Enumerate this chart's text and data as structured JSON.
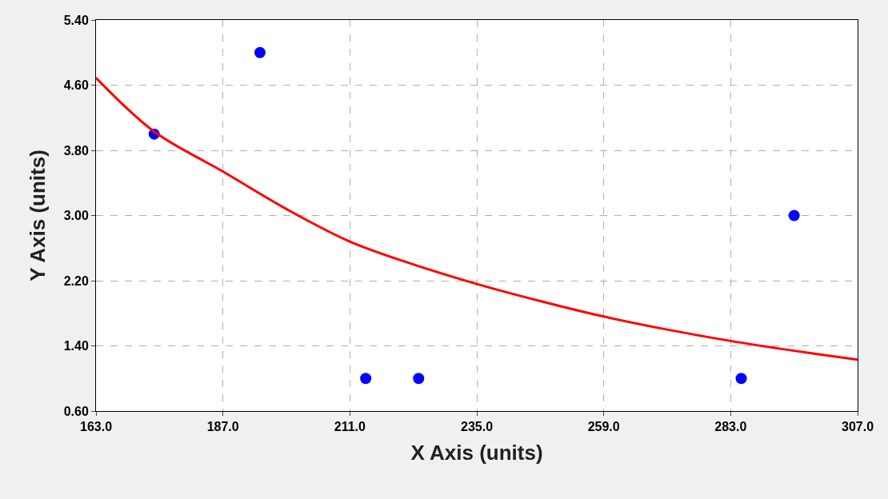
{
  "chart_data": {
    "type": "scatter",
    "xlabel": "X Axis (units)",
    "ylabel": "Y Axis (units)",
    "xlim": [
      163,
      307
    ],
    "ylim": [
      0.6,
      5.4
    ],
    "xticks": [
      {
        "value": 163,
        "label": "163.0"
      },
      {
        "value": 187,
        "label": "187.0"
      },
      {
        "value": 211,
        "label": "211.0"
      },
      {
        "value": 235,
        "label": "235.0"
      },
      {
        "value": 259,
        "label": "259.0"
      },
      {
        "value": 283,
        "label": "283.0"
      },
      {
        "value": 307,
        "label": "307.0"
      }
    ],
    "yticks": [
      {
        "value": 0.6,
        "label": "0.60"
      },
      {
        "value": 1.4,
        "label": "1.40"
      },
      {
        "value": 2.2,
        "label": "2.20"
      },
      {
        "value": 3.0,
        "label": "3.00"
      },
      {
        "value": 3.8,
        "label": "3.80"
      },
      {
        "value": 4.6,
        "label": "4.60"
      },
      {
        "value": 5.4,
        "label": "5.40"
      }
    ],
    "grid": true,
    "series": [
      {
        "color": "#0000ff",
        "marker": "circle",
        "x": [
          174,
          194,
          214,
          224,
          285,
          295
        ],
        "values": [
          4.0,
          5.0,
          1.0,
          1.0,
          1.0,
          3.0
        ]
      },
      {
        "type": "line",
        "color": "#ff0000",
        "marker": "none",
        "line_style": "solid",
        "x": [
          163,
          174,
          187,
          199,
          211,
          223,
          235,
          247,
          259,
          271,
          283,
          295,
          307
        ],
        "values": [
          4.69,
          4.03,
          3.54,
          3.08,
          2.68,
          2.4,
          2.16,
          1.95,
          1.76,
          1.6,
          1.46,
          1.34,
          1.23
        ]
      }
    ]
  }
}
